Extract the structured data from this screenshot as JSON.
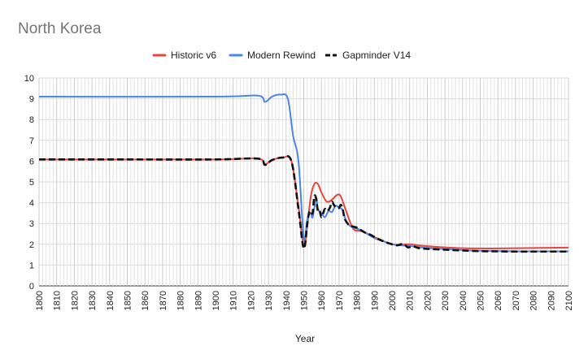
{
  "chart_data": {
    "type": "line",
    "title": "North Korea",
    "xlabel": "Year",
    "ylabel": "",
    "xlim": [
      1800,
      2100
    ],
    "ylim": [
      0,
      10
    ],
    "y_ticks": [
      0,
      1,
      2,
      3,
      4,
      5,
      6,
      7,
      8,
      9,
      10
    ],
    "x_ticks": [
      1800,
      1810,
      1820,
      1830,
      1840,
      1850,
      1860,
      1870,
      1880,
      1890,
      1900,
      1910,
      1920,
      1930,
      1940,
      1950,
      1960,
      1970,
      1980,
      1990,
      2000,
      2010,
      2020,
      2030,
      2040,
      2050,
      2060,
      2070,
      2080,
      2090,
      2100
    ],
    "grid": true,
    "legend_position": "top-center",
    "series": [
      {
        "name": "Historic v6",
        "color": "#e8453c",
        "dash": "solid",
        "points": [
          [
            1800,
            6.08
          ],
          [
            1850,
            6.08
          ],
          [
            1900,
            6.08
          ],
          [
            1924,
            6.12
          ],
          [
            1928,
            5.85
          ],
          [
            1932,
            6.05
          ],
          [
            1938,
            6.17
          ],
          [
            1943,
            6.0
          ],
          [
            1947,
            3.8
          ],
          [
            1950,
            1.9
          ],
          [
            1952,
            2.9
          ],
          [
            1954,
            4.3
          ],
          [
            1956,
            4.9
          ],
          [
            1958,
            4.9
          ],
          [
            1960,
            4.5
          ],
          [
            1963,
            4.05
          ],
          [
            1966,
            4.15
          ],
          [
            1969,
            4.38
          ],
          [
            1971,
            4.3
          ],
          [
            1974,
            3.6
          ],
          [
            1978,
            2.75
          ],
          [
            1982,
            2.65
          ],
          [
            1985,
            2.55
          ],
          [
            1990,
            2.35
          ],
          [
            1995,
            2.15
          ],
          [
            2000,
            2.0
          ],
          [
            2005,
            1.98
          ],
          [
            2010,
            2.0
          ],
          [
            2015,
            1.95
          ],
          [
            2020,
            1.91
          ],
          [
            2030,
            1.85
          ],
          [
            2040,
            1.81
          ],
          [
            2050,
            1.8
          ],
          [
            2060,
            1.8
          ],
          [
            2070,
            1.81
          ],
          [
            2080,
            1.82
          ],
          [
            2090,
            1.83
          ],
          [
            2100,
            1.84
          ]
        ]
      },
      {
        "name": "Modern Rewind",
        "color": "#4a86e8",
        "dash": "solid",
        "points": [
          [
            1800,
            9.1
          ],
          [
            1900,
            9.1
          ],
          [
            1924,
            9.15
          ],
          [
            1928,
            8.85
          ],
          [
            1932,
            9.1
          ],
          [
            1937,
            9.2
          ],
          [
            1941,
            9.0
          ],
          [
            1944,
            7.2
          ],
          [
            1947,
            6.0
          ],
          [
            1950,
            2.3
          ],
          [
            1952,
            3.2
          ],
          [
            1954,
            3.5
          ],
          [
            1955,
            3.3
          ],
          [
            1957,
            4.2
          ],
          [
            1958,
            3.7
          ],
          [
            1960,
            3.5
          ],
          [
            1962,
            3.3
          ],
          [
            1964,
            3.6
          ],
          [
            1966,
            3.55
          ],
          [
            1968,
            3.85
          ],
          [
            1970,
            3.75
          ],
          [
            1972,
            3.65
          ],
          [
            1974,
            3.1
          ],
          [
            1976,
            2.9
          ],
          [
            1978,
            2.8
          ],
          [
            1982,
            2.7
          ],
          [
            1985,
            2.55
          ],
          [
            1990,
            2.3
          ],
          [
            1995,
            2.15
          ],
          [
            2000,
            2.0
          ],
          [
            2005,
            1.95
          ],
          [
            2010,
            1.92
          ],
          [
            2020,
            1.82
          ],
          [
            2030,
            1.77
          ],
          [
            2040,
            1.72
          ],
          [
            2050,
            1.69
          ],
          [
            2060,
            1.67
          ],
          [
            2070,
            1.66
          ],
          [
            2080,
            1.66
          ],
          [
            2090,
            1.66
          ],
          [
            2100,
            1.66
          ]
        ]
      },
      {
        "name": "Gapminder V14",
        "color": "#111111",
        "dash": "dashed",
        "points": [
          [
            1800,
            6.08
          ],
          [
            1850,
            6.08
          ],
          [
            1900,
            6.08
          ],
          [
            1924,
            6.12
          ],
          [
            1928,
            5.82
          ],
          [
            1932,
            6.05
          ],
          [
            1938,
            6.17
          ],
          [
            1943,
            6.0
          ],
          [
            1947,
            3.7
          ],
          [
            1950,
            1.8
          ],
          [
            1952,
            3.0
          ],
          [
            1953,
            3.5
          ],
          [
            1954,
            3.6
          ],
          [
            1955,
            3.5
          ],
          [
            1956,
            4.3
          ],
          [
            1957,
            4.2
          ],
          [
            1958,
            3.6
          ],
          [
            1959,
            3.6
          ],
          [
            1960,
            3.3
          ],
          [
            1961,
            3.5
          ],
          [
            1962,
            3.7
          ],
          [
            1963,
            3.6
          ],
          [
            1964,
            3.65
          ],
          [
            1965,
            3.8
          ],
          [
            1966,
            4.05
          ],
          [
            1967,
            3.9
          ],
          [
            1968,
            3.8
          ],
          [
            1969,
            3.75
          ],
          [
            1970,
            3.75
          ],
          [
            1971,
            3.9
          ],
          [
            1972,
            3.7
          ],
          [
            1973,
            3.3
          ],
          [
            1974,
            3.1
          ],
          [
            1976,
            2.9
          ],
          [
            1978,
            2.85
          ],
          [
            1980,
            2.8
          ],
          [
            1982,
            2.7
          ],
          [
            1985,
            2.55
          ],
          [
            1988,
            2.45
          ],
          [
            1990,
            2.35
          ],
          [
            1995,
            2.15
          ],
          [
            2000,
            2.0
          ],
          [
            2003,
            1.95
          ],
          [
            2005,
            2.0
          ],
          [
            2007,
            2.0
          ],
          [
            2009,
            1.85
          ],
          [
            2012,
            1.9
          ],
          [
            2015,
            1.82
          ],
          [
            2020,
            1.78
          ],
          [
            2030,
            1.74
          ],
          [
            2040,
            1.7
          ],
          [
            2050,
            1.67
          ],
          [
            2060,
            1.66
          ],
          [
            2070,
            1.65
          ],
          [
            2080,
            1.65
          ],
          [
            2090,
            1.65
          ],
          [
            2100,
            1.65
          ]
        ]
      }
    ]
  }
}
